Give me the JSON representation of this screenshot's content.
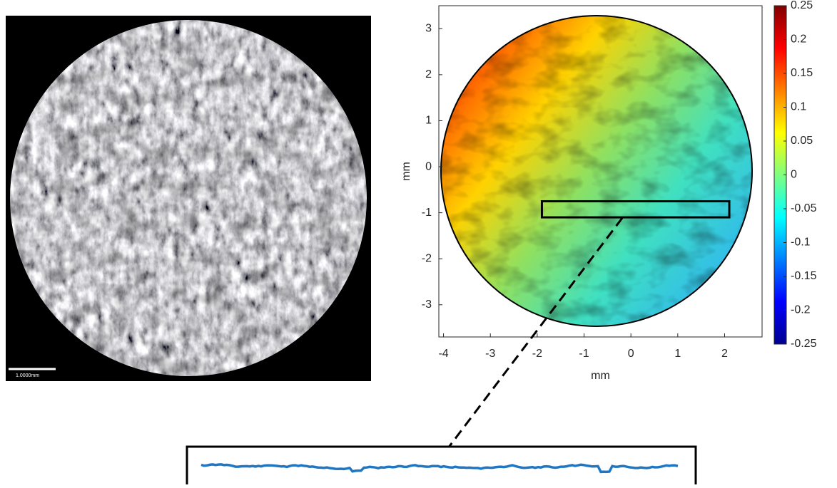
{
  "image": {
    "scale_bar": "1.0000mm"
  },
  "chart_data": {
    "type": "contour",
    "colormap": "jet",
    "xlabel": "mm",
    "ylabel": "mm",
    "xlim": [
      -4.1,
      2.8
    ],
    "ylim": [
      -3.7,
      3.5
    ],
    "xticks": [
      -4,
      -3,
      -2,
      -1,
      0,
      1,
      2
    ],
    "yticks": [
      -3,
      -2,
      -1,
      0,
      1,
      2,
      3
    ],
    "clim": [
      -0.25,
      0.25
    ],
    "cticks": [
      0.25,
      0.2,
      0.15,
      0.1,
      0.05,
      0,
      -0.05,
      -0.1,
      -0.15,
      -0.2,
      -0.25
    ],
    "selection": {
      "x": [
        -1.9,
        2.1
      ],
      "y": [
        -1.1,
        -0.75
      ]
    }
  }
}
